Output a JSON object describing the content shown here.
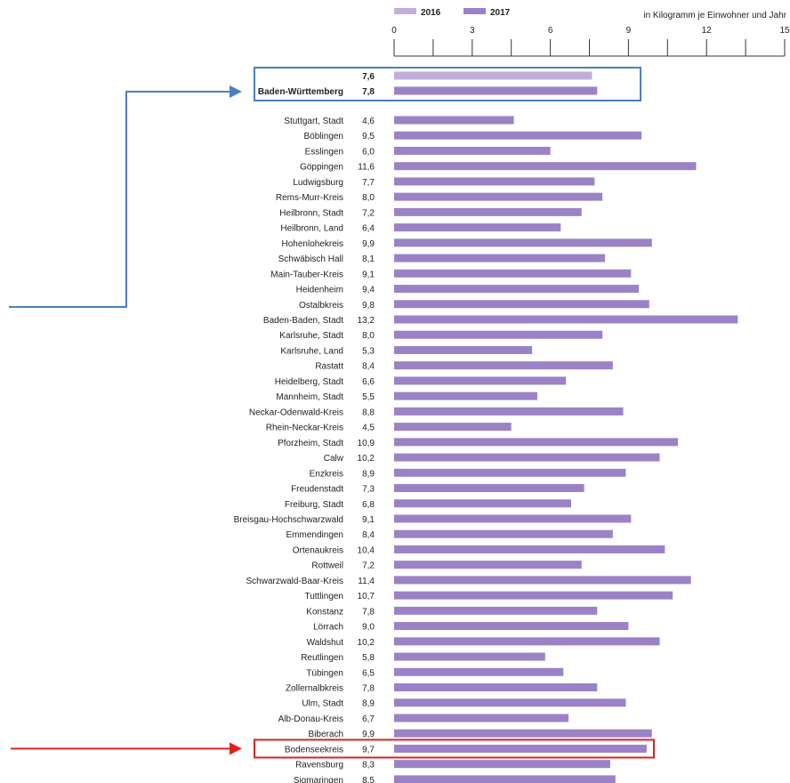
{
  "chart_data": {
    "type": "bar",
    "orientation": "horizontal",
    "unit_label": "in Kilogramm je Einwohner und Jahr",
    "xlim": [
      0,
      15
    ],
    "ticks": [
      0,
      3,
      6,
      9,
      12,
      15
    ],
    "legend": {
      "placement": "top",
      "items": [
        {
          "label": "2016",
          "color": "#c3aedb"
        },
        {
          "label": "2017",
          "color": "#9b82c6"
        }
      ]
    },
    "summary": [
      {
        "category": "",
        "value": 7.6,
        "value_label": "7,6",
        "year": "2016"
      },
      {
        "category": "Baden-Württemberg",
        "value": 7.8,
        "value_label": "7,8",
        "year": "2017"
      }
    ],
    "categories": [
      "Stuttgart, Stadt",
      "Böblingen",
      "Esslingen",
      "Göppingen",
      "Ludwigsburg",
      "Rems-Murr-Kreis",
      "Heilbronn, Stadt",
      "Heilbronn, Land",
      "Hohenlohekreis",
      "Schwäbisch Hall",
      "Main-Tauber-Kreis",
      "Heidenheim",
      "Ostalbkreis",
      "Baden-Baden, Stadt",
      "Karlsruhe, Stadt",
      "Karlsruhe, Land",
      "Rastatt",
      "Heidelberg, Stadt",
      "Mannheim, Stadt",
      "Neckar-Odenwald-Kreis",
      "Rhein-Neckar-Kreis",
      "Pforzheim, Stadt",
      "Calw",
      "Enzkreis",
      "Freudenstadt",
      "Freiburg, Stadt",
      "Breisgau-Hochschwarzwald",
      "Emmendingen",
      "Ortenaukreis",
      "Rottweil",
      "Schwarzwald-Baar-Kreis",
      "Tuttlingen",
      "Konstanz",
      "Lörrach",
      "Waldshut",
      "Reutlingen",
      "Tübingen",
      "Zollernalbkreis",
      "Ulm, Stadt",
      "Alb-Donau-Kreis",
      "Biberach",
      "Bodenseekreis",
      "Ravensburg",
      "Sigmaringen"
    ],
    "values": [
      4.6,
      9.5,
      6.0,
      11.6,
      7.7,
      8.0,
      7.2,
      6.4,
      9.9,
      8.1,
      9.1,
      9.4,
      9.8,
      13.2,
      8.0,
      5.3,
      8.4,
      6.6,
      5.5,
      8.8,
      4.5,
      10.9,
      10.2,
      8.9,
      7.3,
      6.8,
      9.1,
      8.4,
      10.4,
      7.2,
      11.4,
      10.7,
      7.8,
      9.0,
      10.2,
      5.8,
      6.5,
      7.8,
      8.9,
      6.7,
      9.9,
      9.7,
      8.3,
      8.5
    ],
    "value_labels": [
      "4,6",
      "9,5",
      "6,0",
      "11,6",
      "7,7",
      "8,0",
      "7,2",
      "6,4",
      "9,9",
      "8,1",
      "9,1",
      "9,4",
      "9,8",
      "13,2",
      "8,0",
      "5,3",
      "8,4",
      "6,6",
      "5,5",
      "8,8",
      "4,5",
      "10,9",
      "10,2",
      "8,9",
      "7,3",
      "6,8",
      "9,1",
      "8,4",
      "10,4",
      "7,2",
      "11,4",
      "10,7",
      "7,8",
      "9,0",
      "10,2",
      "5,8",
      "6,5",
      "7,8",
      "8,9",
      "6,7",
      "9,9",
      "9,7",
      "8,3",
      "8,5"
    ],
    "highlights": [
      {
        "target": "summary",
        "color": "#4a7fc1"
      },
      {
        "target": "Bodenseekreis",
        "color": "#e02020"
      }
    ]
  }
}
